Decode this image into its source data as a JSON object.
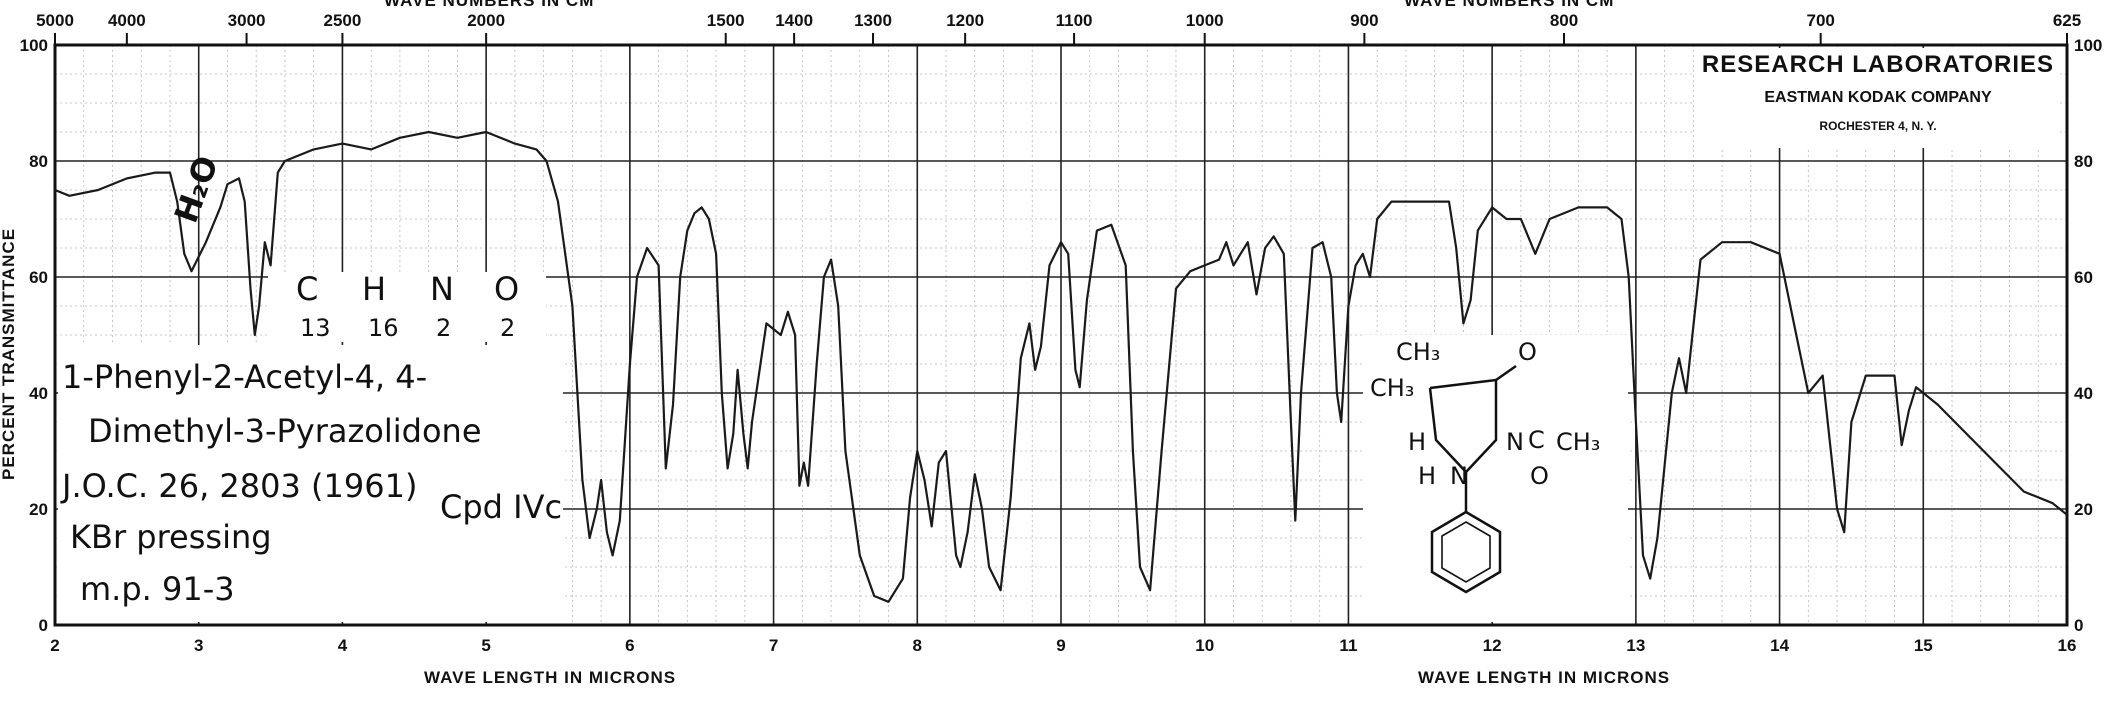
{
  "chart_data": {
    "type": "line",
    "title": "",
    "top_axis": {
      "label_left": "WAVE NUMBERS IN CM",
      "label_right": "WAVE NUMBERS IN CM",
      "ticks": [
        {
          "label": "5000",
          "micron": 2.0
        },
        {
          "label": "4000",
          "micron": 2.5
        },
        {
          "label": "3000",
          "micron": 3.333
        },
        {
          "label": "2500",
          "micron": 4.0
        },
        {
          "label": "2000",
          "micron": 5.0
        },
        {
          "label": "1500",
          "micron": 6.667
        },
        {
          "label": "1400",
          "micron": 7.143
        },
        {
          "label": "1300",
          "micron": 7.692
        },
        {
          "label": "1200",
          "micron": 8.333
        },
        {
          "label": "1100",
          "micron": 9.091
        },
        {
          "label": "1000",
          "micron": 10.0
        },
        {
          "label": "900",
          "micron": 11.111
        },
        {
          "label": "800",
          "micron": 12.5
        },
        {
          "label": "700",
          "micron": 14.286
        },
        {
          "label": "625",
          "micron": 16.0
        }
      ]
    },
    "xlabel": "WAVE LENGTH IN MICRONS",
    "xlabel_right": "WAVE LENGTH IN MICRONS",
    "ylabel": "PERCENT TRANSMITTANCE",
    "xlim": [
      2,
      16
    ],
    "ylim": [
      0,
      100
    ],
    "x_ticks": [
      "2",
      "3",
      "4",
      "5",
      "6",
      "7",
      "8",
      "9",
      "10",
      "11",
      "12",
      "13",
      "14",
      "15",
      "16"
    ],
    "y_ticks_left": [
      "0",
      "20",
      "40",
      "60",
      "80",
      "100"
    ],
    "y_ticks_right": [
      "0",
      "20",
      "40",
      "60",
      "80",
      "100"
    ],
    "grid": true,
    "series": [
      {
        "color": "#1a1a1a",
        "points": [
          [
            2.0,
            75
          ],
          [
            2.1,
            74
          ],
          [
            2.3,
            75
          ],
          [
            2.5,
            77
          ],
          [
            2.7,
            78
          ],
          [
            2.8,
            78
          ],
          [
            2.85,
            73
          ],
          [
            2.9,
            64
          ],
          [
            2.95,
            61
          ],
          [
            3.05,
            66
          ],
          [
            3.15,
            72
          ],
          [
            3.2,
            76
          ],
          [
            3.28,
            77
          ],
          [
            3.32,
            73
          ],
          [
            3.36,
            58
          ],
          [
            3.39,
            50
          ],
          [
            3.42,
            55
          ],
          [
            3.46,
            66
          ],
          [
            3.5,
            62
          ],
          [
            3.55,
            78
          ],
          [
            3.6,
            80
          ],
          [
            3.8,
            82
          ],
          [
            4.0,
            83
          ],
          [
            4.2,
            82
          ],
          [
            4.4,
            84
          ],
          [
            4.6,
            85
          ],
          [
            4.8,
            84
          ],
          [
            5.0,
            85
          ],
          [
            5.2,
            83
          ],
          [
            5.35,
            82
          ],
          [
            5.42,
            80
          ],
          [
            5.5,
            73
          ],
          [
            5.6,
            55
          ],
          [
            5.67,
            25
          ],
          [
            5.72,
            15
          ],
          [
            5.77,
            20
          ],
          [
            5.8,
            25
          ],
          [
            5.84,
            16
          ],
          [
            5.88,
            12
          ],
          [
            5.93,
            18
          ],
          [
            6.0,
            45
          ],
          [
            6.05,
            60
          ],
          [
            6.12,
            65
          ],
          [
            6.2,
            62
          ],
          [
            6.25,
            27
          ],
          [
            6.3,
            38
          ],
          [
            6.35,
            60
          ],
          [
            6.4,
            68
          ],
          [
            6.45,
            71
          ],
          [
            6.5,
            72
          ],
          [
            6.55,
            70
          ],
          [
            6.6,
            64
          ],
          [
            6.64,
            40
          ],
          [
            6.68,
            27
          ],
          [
            6.72,
            33
          ],
          [
            6.75,
            44
          ],
          [
            6.79,
            33
          ],
          [
            6.82,
            27
          ],
          [
            6.85,
            35
          ],
          [
            6.95,
            52
          ],
          [
            7.05,
            50
          ],
          [
            7.1,
            54
          ],
          [
            7.15,
            50
          ],
          [
            7.18,
            24
          ],
          [
            7.21,
            28
          ],
          [
            7.24,
            24
          ],
          [
            7.3,
            45
          ],
          [
            7.35,
            60
          ],
          [
            7.4,
            63
          ],
          [
            7.45,
            55
          ],
          [
            7.5,
            30
          ],
          [
            7.6,
            12
          ],
          [
            7.7,
            5
          ],
          [
            7.8,
            4
          ],
          [
            7.9,
            8
          ],
          [
            7.95,
            22
          ],
          [
            8.0,
            30
          ],
          [
            8.05,
            25
          ],
          [
            8.1,
            17
          ],
          [
            8.15,
            28
          ],
          [
            8.2,
            30
          ],
          [
            8.27,
            12
          ],
          [
            8.3,
            10
          ],
          [
            8.35,
            16
          ],
          [
            8.4,
            26
          ],
          [
            8.45,
            20
          ],
          [
            8.5,
            10
          ],
          [
            8.58,
            6
          ],
          [
            8.65,
            22
          ],
          [
            8.72,
            46
          ],
          [
            8.78,
            52
          ],
          [
            8.82,
            44
          ],
          [
            8.86,
            48
          ],
          [
            8.92,
            62
          ],
          [
            9.0,
            66
          ],
          [
            9.05,
            64
          ],
          [
            9.1,
            44
          ],
          [
            9.13,
            41
          ],
          [
            9.18,
            56
          ],
          [
            9.25,
            68
          ],
          [
            9.35,
            69
          ],
          [
            9.45,
            62
          ],
          [
            9.5,
            30
          ],
          [
            9.55,
            10
          ],
          [
            9.62,
            6
          ],
          [
            9.7,
            30
          ],
          [
            9.8,
            58
          ],
          [
            9.9,
            61
          ],
          [
            10.0,
            62
          ],
          [
            10.1,
            63
          ],
          [
            10.15,
            66
          ],
          [
            10.2,
            62
          ],
          [
            10.25,
            64
          ],
          [
            10.3,
            66
          ],
          [
            10.36,
            57
          ],
          [
            10.42,
            65
          ],
          [
            10.48,
            67
          ],
          [
            10.55,
            64
          ],
          [
            10.6,
            35
          ],
          [
            10.63,
            18
          ],
          [
            10.67,
            40
          ],
          [
            10.75,
            65
          ],
          [
            10.82,
            66
          ],
          [
            10.88,
            60
          ],
          [
            10.92,
            40
          ],
          [
            10.95,
            35
          ],
          [
            11.0,
            55
          ],
          [
            11.05,
            62
          ],
          [
            11.1,
            64
          ],
          [
            11.15,
            60
          ],
          [
            11.2,
            70
          ],
          [
            11.3,
            73
          ],
          [
            11.5,
            73
          ],
          [
            11.7,
            73
          ],
          [
            11.75,
            65
          ],
          [
            11.8,
            52
          ],
          [
            11.85,
            56
          ],
          [
            11.9,
            68
          ],
          [
            12.0,
            72
          ],
          [
            12.1,
            70
          ],
          [
            12.2,
            70
          ],
          [
            12.3,
            64
          ],
          [
            12.4,
            70
          ],
          [
            12.6,
            72
          ],
          [
            12.8,
            72
          ],
          [
            12.9,
            70
          ],
          [
            12.95,
            60
          ],
          [
            13.0,
            35
          ],
          [
            13.05,
            12
          ],
          [
            13.1,
            8
          ],
          [
            13.15,
            15
          ],
          [
            13.25,
            40
          ],
          [
            13.3,
            46
          ],
          [
            13.35,
            40
          ],
          [
            13.45,
            63
          ],
          [
            13.6,
            66
          ],
          [
            13.8,
            66
          ],
          [
            14.0,
            64
          ],
          [
            14.1,
            52
          ],
          [
            14.2,
            40
          ],
          [
            14.3,
            43
          ],
          [
            14.4,
            20
          ],
          [
            14.45,
            16
          ],
          [
            14.5,
            35
          ],
          [
            14.6,
            43
          ],
          [
            14.8,
            43
          ],
          [
            14.85,
            31
          ],
          [
            14.9,
            37
          ],
          [
            14.95,
            41
          ],
          [
            15.1,
            38
          ],
          [
            15.3,
            33
          ],
          [
            15.5,
            28
          ],
          [
            15.7,
            23
          ],
          [
            15.9,
            21
          ],
          [
            16.0,
            19
          ]
        ]
      }
    ]
  },
  "lab_header": {
    "line1": "RESEARCH LABORATORIES",
    "line2": "EASTMAN KODAK COMPANY",
    "line3": "ROCHESTER 4, N. Y."
  },
  "annotations": {
    "h2o": "H₂O",
    "formula_parts": [
      "C",
      "13",
      "H",
      "16",
      "N",
      "2",
      "O",
      "2"
    ],
    "name_line1": "1-Phenyl-2-Acetyl-4, 4-",
    "name_line2": "Dimethyl-3-Pyrazolidone",
    "ref": "J.O.C. 26, 2803 (1961)",
    "method": "KBr pressing",
    "mp": "m.p. 91-3",
    "cpd": "Cpd IVc"
  },
  "structure_labels": [
    "CH₃",
    "CH₃",
    "O",
    "N",
    "C",
    "CH₃",
    "H",
    "H",
    "N",
    "O"
  ]
}
